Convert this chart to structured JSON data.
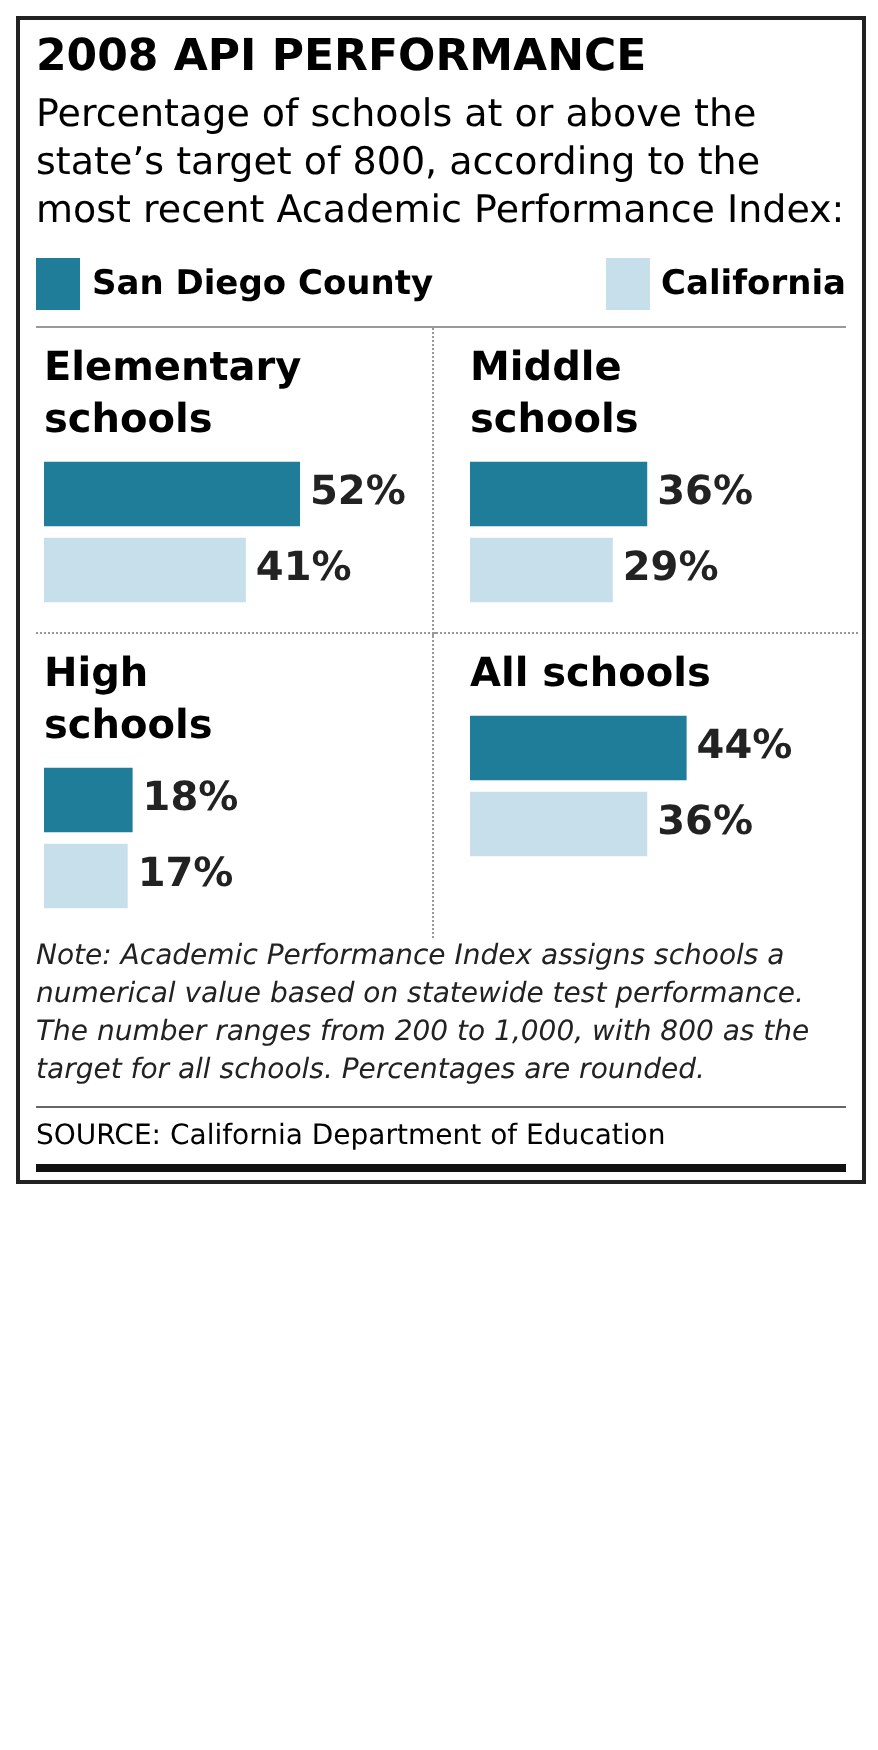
{
  "chart_data": [
    {
      "type": "other",
      "title": "2008 API PERFORMANCE",
      "subtitle": "Percentage of schools at or above the state’s target of 800, according to the most recent Academic Performance Index:"
    },
    {
      "type": "bar",
      "orientation": "horizontal",
      "title": "Elementary schools",
      "categories": [
        null
      ],
      "legend": "top",
      "series": [
        {
          "name": "San Diego County",
          "color": "#1f7d99",
          "values": [
            52
          ],
          "value_labels": [
            "52%"
          ]
        },
        {
          "name": "California",
          "color": "#c6dfea",
          "values": [
            41
          ],
          "value_labels": [
            "41%"
          ]
        }
      ]
    },
    {
      "type": "bar",
      "orientation": "horizontal",
      "title": "Middle schools",
      "categories": [
        null
      ],
      "series": [
        {
          "color": "#1f7d99",
          "values": [
            36
          ],
          "value_labels": [
            "36%"
          ]
        },
        {
          "color": "#c6dfea",
          "values": [
            29
          ],
          "value_labels": [
            "29%"
          ]
        }
      ]
    },
    {
      "type": "bar",
      "orientation": "horizontal",
      "title": "High schools",
      "categories": [
        null
      ],
      "series": [
        {
          "color": "#1f7d99",
          "values": [
            18
          ],
          "value_labels": [
            "18%"
          ]
        },
        {
          "color": "#c6dfea",
          "values": [
            17
          ],
          "value_labels": [
            "17%"
          ]
        }
      ]
    },
    {
      "type": "bar",
      "orientation": "horizontal",
      "title": "All schools",
      "categories": [
        null
      ],
      "series": [
        {
          "color": "#1f7d99",
          "values": [
            44
          ],
          "value_labels": [
            "44%"
          ]
        },
        {
          "color": "#c6dfea",
          "values": [
            36
          ],
          "value_labels": [
            "36%"
          ]
        }
      ]
    },
    {
      "type": "other",
      "annotations": [
        "Note: Academic Performance Index assigns schools a numerical value based on statewide test performance. The number ranges from 200 to 1,000, with 800 as the target for all schools. Percentages are rounded.",
        "SOURCE: California Department of Education"
      ]
    }
  ]
}
